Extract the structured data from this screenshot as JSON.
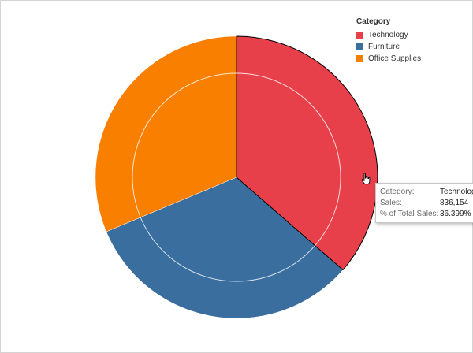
{
  "legend": {
    "title": "Category",
    "items": [
      {
        "label": "Technology",
        "color": "#e8404a"
      },
      {
        "label": "Furniture",
        "color": "#3a6e9f"
      },
      {
        "label": "Office Supplies",
        "color": "#f87f00"
      }
    ]
  },
  "tooltip": {
    "rows": [
      {
        "key": "Category:",
        "value": "Technolog"
      },
      {
        "key": "Sales:",
        "value": "836,154"
      },
      {
        "key": "% of Total Sales:",
        "value": "36.399%"
      }
    ]
  },
  "chart_data": {
    "type": "pie",
    "categories": [
      "Technology",
      "Furniture",
      "Office Supplies"
    ],
    "values": [
      36.399,
      32.3,
      31.3
    ],
    "colors": [
      "#e8404a",
      "#3a6e9f",
      "#f87f00"
    ],
    "highlighted": "Technology",
    "legend_position": "top-right"
  }
}
